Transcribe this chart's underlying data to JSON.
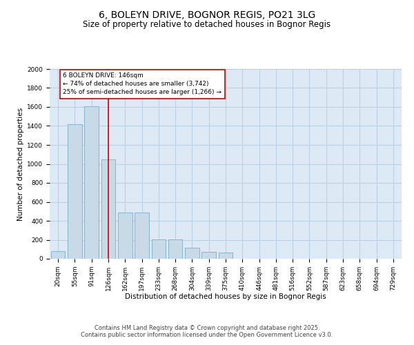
{
  "title1": "6, BOLEYN DRIVE, BOGNOR REGIS, PO21 3LG",
  "title2": "Size of property relative to detached houses in Bognor Regis",
  "xlabel": "Distribution of detached houses by size in Bognor Regis",
  "ylabel": "Number of detached properties",
  "categories": [
    "20sqm",
    "55sqm",
    "91sqm",
    "126sqm",
    "162sqm",
    "197sqm",
    "233sqm",
    "268sqm",
    "304sqm",
    "339sqm",
    "375sqm",
    "410sqm",
    "446sqm",
    "481sqm",
    "516sqm",
    "552sqm",
    "587sqm",
    "623sqm",
    "658sqm",
    "694sqm",
    "729sqm"
  ],
  "values": [
    80,
    1420,
    1610,
    1050,
    490,
    490,
    205,
    205,
    120,
    70,
    65,
    0,
    0,
    0,
    0,
    0,
    0,
    0,
    0,
    0,
    0
  ],
  "bar_color": "#c8d9e8",
  "bar_edge_color": "#7aacc8",
  "vline_x_index": 3,
  "vline_color": "#cc0000",
  "annotation_text": "6 BOLEYN DRIVE: 146sqm\n← 74% of detached houses are smaller (3,742)\n25% of semi-detached houses are larger (1,266) →",
  "annotation_box_color": "#cc0000",
  "annotation_box_fill": "#ffffff",
  "ylim": [
    0,
    2000
  ],
  "yticks": [
    0,
    200,
    400,
    600,
    800,
    1000,
    1200,
    1400,
    1600,
    1800,
    2000
  ],
  "grid_color": "#b8cfe0",
  "background_color": "#ddeaf5",
  "footer_line1": "Contains HM Land Registry data © Crown copyright and database right 2025.",
  "footer_line2": "Contains public sector information licensed under the Open Government Licence v3.0.",
  "title_fontsize": 10,
  "subtitle_fontsize": 8.5,
  "axis_label_fontsize": 7.5,
  "tick_fontsize": 6.5,
  "footer_fontsize": 6,
  "annotation_fontsize": 6.5
}
